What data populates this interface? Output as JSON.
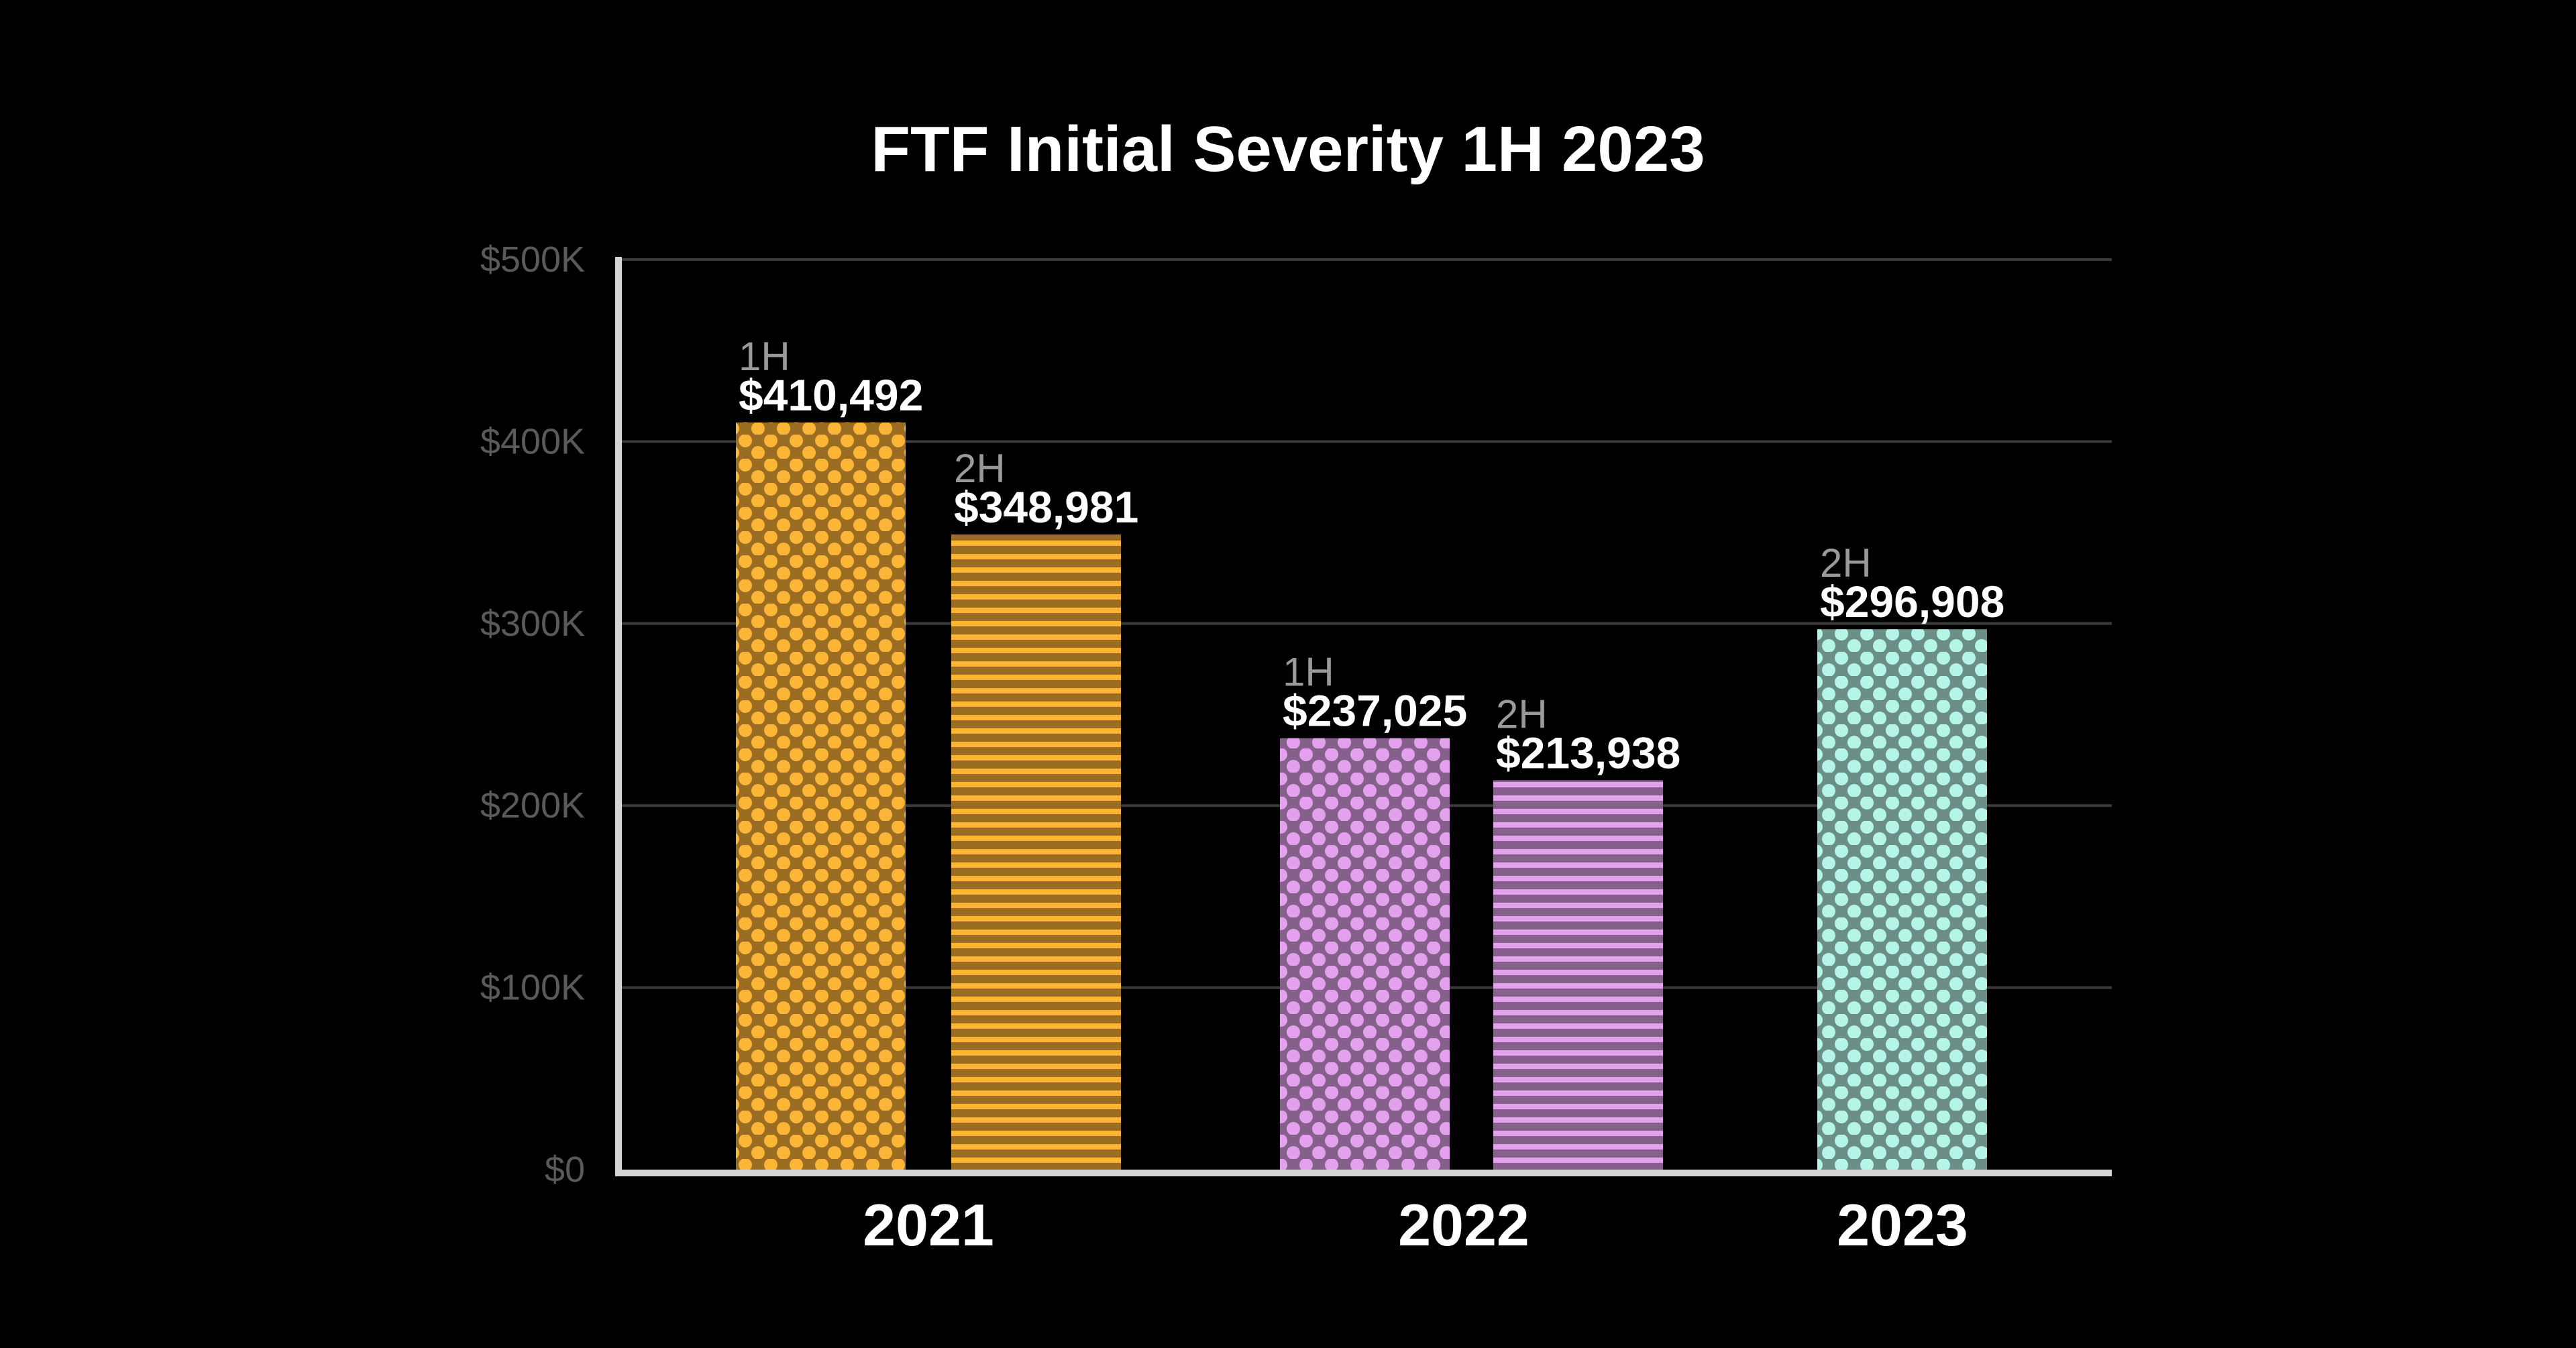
{
  "chart_data": {
    "type": "bar",
    "title": "FTF Initial Severity 1H 2023",
    "xlabel": "",
    "ylabel": "",
    "ylim": [
      0,
      500000
    ],
    "y_ticks": [
      "$0",
      "$100K",
      "$200K",
      "$300K",
      "$400K",
      "$500K"
    ],
    "y_tick_values": [
      0,
      100000,
      200000,
      300000,
      400000,
      500000
    ],
    "grid": true,
    "categories": [
      "2021",
      "2022",
      "2023"
    ],
    "bars": [
      {
        "category": "2021",
        "period": "1H",
        "value": 410492,
        "label": "$410,492",
        "pattern": "dots",
        "color": "#fbb537",
        "shade": "#9a6d22"
      },
      {
        "category": "2021",
        "period": "2H",
        "value": 348981,
        "label": "$348,981",
        "pattern": "stripes",
        "color": "#fbb537",
        "shade": "#9a6d22"
      },
      {
        "category": "2022",
        "period": "1H",
        "value": 237025,
        "label": "$237,025",
        "pattern": "dots",
        "color": "#e3a0ec",
        "shade": "#84608a"
      },
      {
        "category": "2022",
        "period": "2H",
        "value": 213938,
        "label": "$213,938",
        "pattern": "stripes",
        "color": "#e3a0ec",
        "shade": "#84608a"
      },
      {
        "category": "2023",
        "period": "2H",
        "value": 296908,
        "label": "$296,908",
        "pattern": "dots",
        "color": "#b5f5e8",
        "shade": "#6b8f86"
      }
    ],
    "background": "#000000"
  }
}
